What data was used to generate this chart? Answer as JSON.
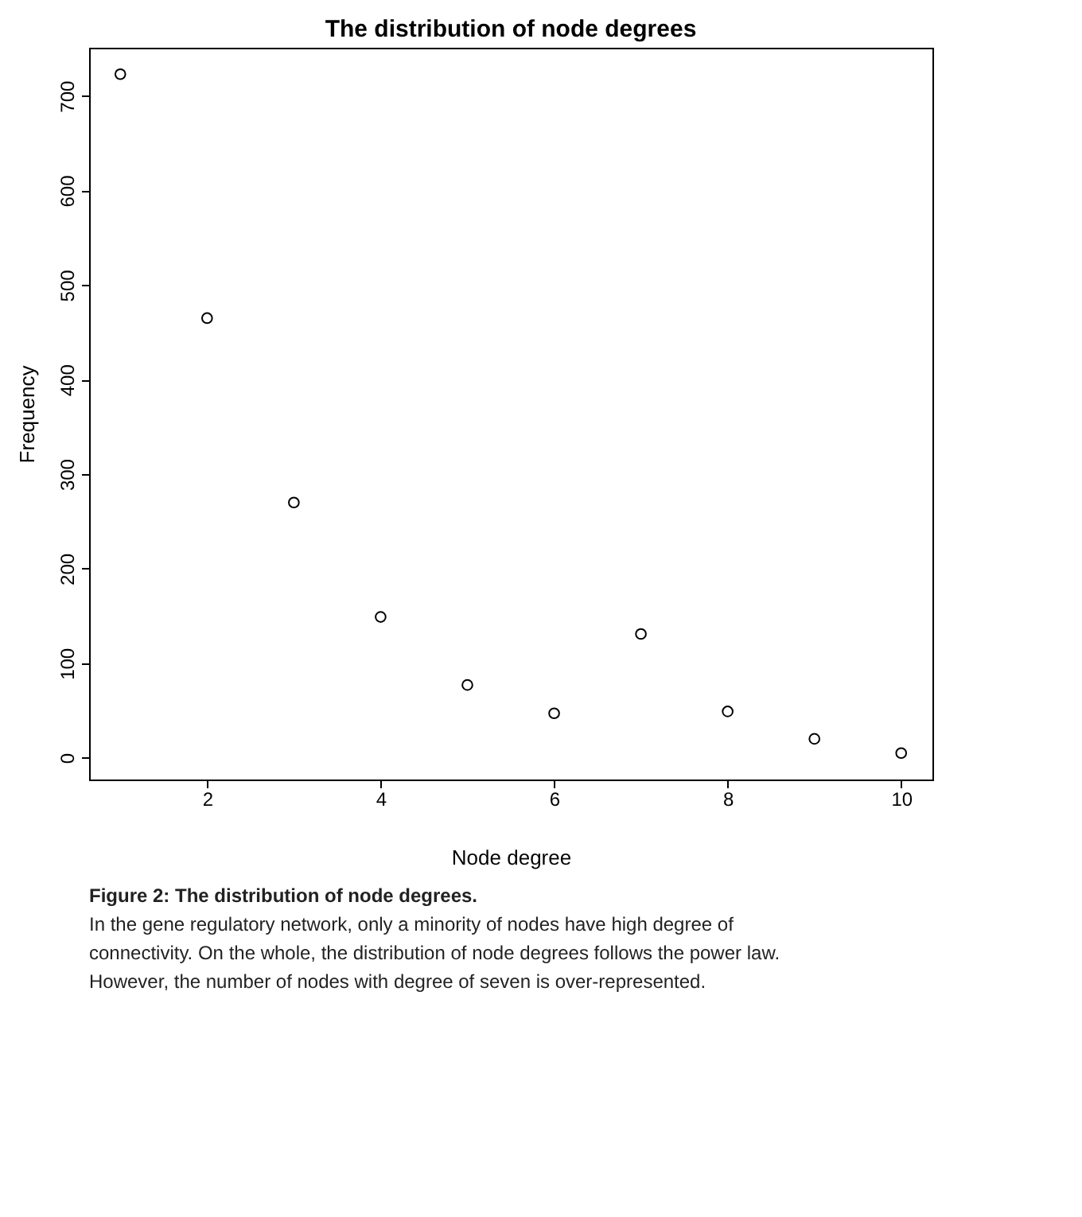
{
  "chart_data": {
    "type": "scatter",
    "title": "The distribution of node degrees",
    "xlabel": "Node degree",
    "ylabel": "Frequency",
    "x": [
      1,
      2,
      3,
      4,
      5,
      6,
      7,
      8,
      9,
      10
    ],
    "values": [
      723,
      465,
      270,
      149,
      77,
      47,
      131,
      49,
      20,
      5
    ],
    "color": "#000000",
    "marker": "circle",
    "grid": false,
    "xlim": [
      0.64,
      10.36
    ],
    "xticks": [
      2,
      4,
      6,
      8,
      10
    ],
    "ylim": [
      -23,
      751
    ],
    "yticks": [
      0,
      100,
      200,
      300,
      400,
      500,
      600,
      700
    ],
    "annotations": [
      "Figure 2: The distribution of node degrees.",
      "In the gene regulatory network, only a minority of nodes have high degree of connectivity. On the whole, the distribution of node degrees follows the power law. However, the number of nodes with degree of seven is over-represented."
    ]
  }
}
